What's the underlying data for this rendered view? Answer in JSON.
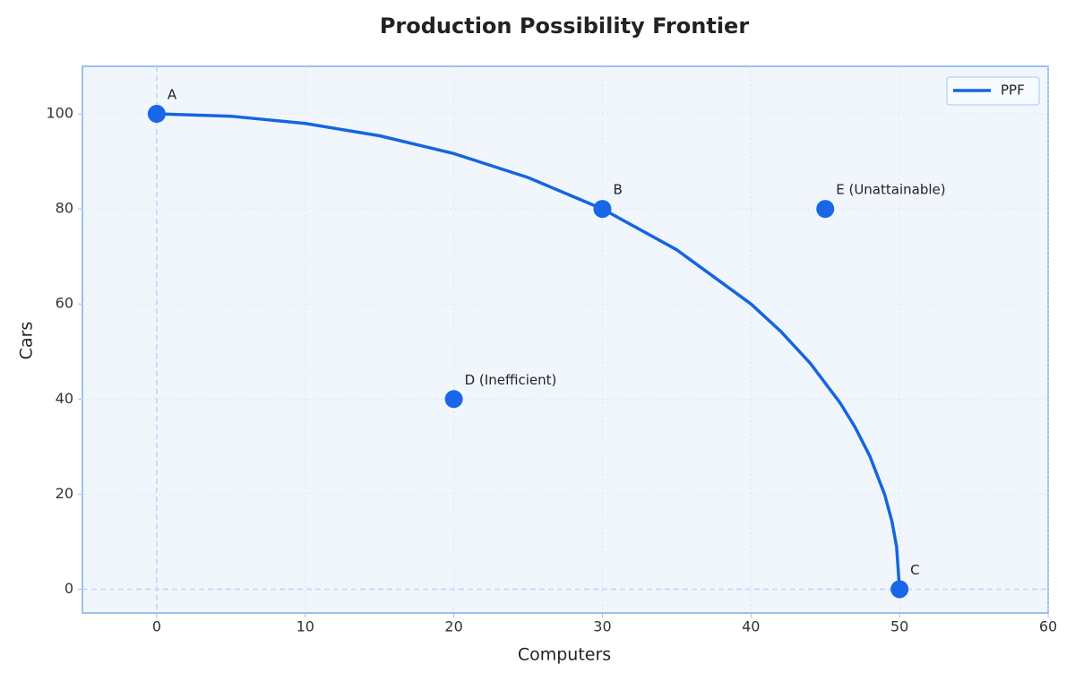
{
  "chart_data": {
    "type": "line",
    "title": "Production Possibility Frontier",
    "x_label": "Computers",
    "y_label": "Cars",
    "xlim": [
      -5,
      60
    ],
    "ylim": [
      -5,
      110
    ],
    "xticks": [
      0,
      10,
      20,
      30,
      40,
      50,
      60
    ],
    "yticks": [
      0,
      20,
      40,
      60,
      80,
      100
    ],
    "grid": true,
    "legend": "upper right",
    "series": [
      {
        "name": "PPF",
        "color": "#1565e0",
        "x": [
          0,
          5,
          10,
          15,
          20,
          25,
          30,
          35,
          40,
          42,
          44,
          46,
          47,
          48,
          49,
          49.5,
          49.8,
          50
        ],
        "values": [
          100,
          99.5,
          97.98,
          95.39,
          91.65,
          86.6,
          80,
          71.41,
          60,
          54.26,
          47.5,
          39.19,
          34.12,
          28,
          19.9,
          14.11,
          8.94,
          0
        ]
      }
    ],
    "points": {
      "color": "#1a66e8",
      "labels": [
        "A",
        "B",
        "C",
        "D (Inefficient)",
        "E (Unattainable)"
      ],
      "x": [
        0,
        30,
        50,
        20,
        45
      ],
      "values": [
        100,
        80,
        0,
        40,
        80
      ]
    }
  }
}
